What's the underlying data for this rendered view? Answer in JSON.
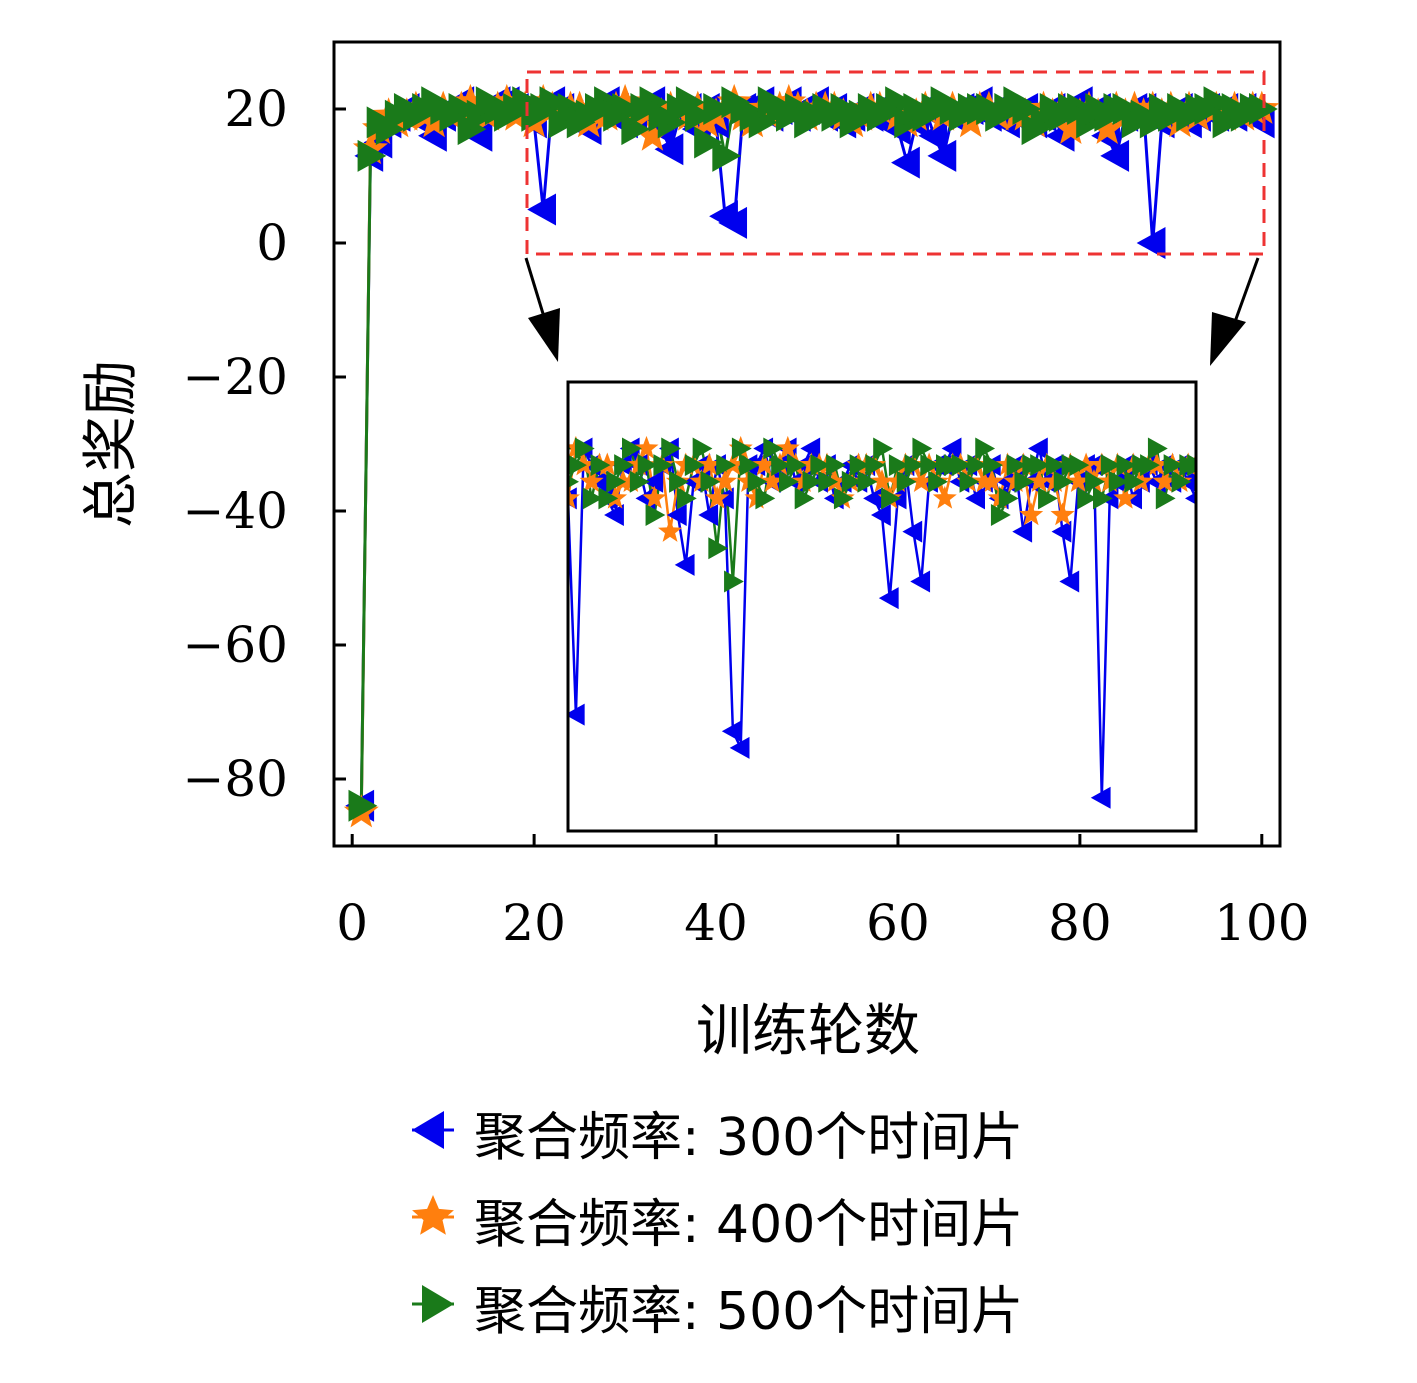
{
  "chart_data": {
    "type": "line",
    "xlabel": "训练轮数",
    "ylabel": "总奖励",
    "xlim": [
      -2,
      102
    ],
    "ylim": [
      -90,
      30
    ],
    "x_ticks": [
      0,
      20,
      40,
      60,
      80,
      100
    ],
    "x_tick_labels": [
      "0",
      "20",
      "40",
      "60",
      "80",
      "100"
    ],
    "y_ticks": [
      20,
      0,
      -20,
      -40,
      -60,
      -80
    ],
    "y_tick_labels": [
      "20",
      "0",
      "−20",
      "−40",
      "−60",
      "−80"
    ],
    "grid": false,
    "legend_position": "bottom",
    "x": [
      1,
      2,
      3,
      4,
      5,
      6,
      7,
      8,
      9,
      10,
      11,
      12,
      13,
      14,
      15,
      16,
      17,
      18,
      19,
      20,
      21,
      22,
      23,
      24,
      25,
      26,
      27,
      28,
      29,
      30,
      31,
      32,
      33,
      34,
      35,
      36,
      37,
      38,
      39,
      40,
      41,
      42,
      43,
      44,
      45,
      46,
      47,
      48,
      49,
      50,
      51,
      52,
      53,
      54,
      55,
      56,
      57,
      58,
      59,
      60,
      61,
      62,
      63,
      64,
      65,
      66,
      67,
      68,
      69,
      70,
      71,
      72,
      73,
      74,
      75,
      76,
      77,
      78,
      79,
      80,
      81,
      82,
      83,
      84,
      85,
      86,
      87,
      88,
      89,
      90,
      91,
      92,
      93,
      94,
      95,
      96,
      97,
      98,
      99,
      100
    ],
    "series": [
      {
        "name": "聚合频率: 300个时间片",
        "color": "#0000ee",
        "marker": "triangle-left",
        "values": [
          -84,
          13,
          15,
          18,
          19,
          20,
          19,
          18,
          16,
          19,
          20,
          21,
          18,
          16,
          20,
          21,
          21,
          20,
          19,
          18,
          5,
          21,
          20,
          19,
          18,
          17,
          20,
          21,
          20,
          18,
          19,
          20,
          21,
          17,
          14,
          19,
          20,
          17,
          20,
          18,
          4,
          3,
          20,
          20,
          21,
          19,
          20,
          21,
          19,
          20,
          21,
          19,
          20,
          18,
          19,
          20,
          19,
          20,
          18,
          17,
          12,
          18,
          20,
          16,
          13,
          19,
          20,
          20,
          21,
          19,
          20,
          18,
          19,
          20,
          18,
          19,
          20,
          16,
          19,
          21,
          19,
          20,
          16,
          13,
          19,
          20,
          20,
          0,
          18,
          19,
          20,
          18,
          19,
          20,
          19,
          20,
          19,
          20,
          19,
          18
        ]
      },
      {
        "name": "聚合频率: 400个时间片",
        "color": "#ff7f0e",
        "marker": "star",
        "values": [
          -85,
          14,
          17,
          19,
          18,
          19,
          20,
          19,
          18,
          20,
          19,
          20,
          21,
          20,
          19,
          20,
          21,
          19,
          20,
          18,
          21,
          20,
          19,
          20,
          20,
          18,
          19,
          19,
          20,
          21,
          18,
          20,
          16,
          19,
          20,
          20,
          19,
          20,
          18,
          19,
          20,
          21,
          19,
          18,
          20,
          19,
          20,
          21,
          20,
          19,
          20,
          20,
          20,
          19,
          18,
          19,
          20,
          20,
          20,
          19,
          18,
          19,
          20,
          20,
          19,
          20,
          19,
          18,
          20,
          20,
          19,
          20,
          19,
          19,
          18,
          20,
          19,
          20,
          17,
          19,
          20,
          19,
          17,
          20,
          19,
          20,
          19,
          20,
          19,
          20,
          18,
          20,
          19,
          20,
          20,
          19,
          20,
          19,
          20,
          20
        ]
      },
      {
        "name": "聚合频率: 500个时间片",
        "color": "#1a7a1a",
        "marker": "triangle-right",
        "values": [
          -84,
          13,
          18,
          17,
          19,
          20,
          19,
          20,
          21,
          20,
          19,
          20,
          17,
          19,
          21,
          20,
          19,
          20,
          21,
          19,
          20,
          21,
          18,
          20,
          18,
          19,
          20,
          21,
          19,
          20,
          17,
          20,
          21,
          19,
          18,
          20,
          21,
          19,
          15,
          20,
          13,
          21,
          20,
          19,
          18,
          21,
          20,
          19,
          20,
          18,
          19,
          20,
          19,
          20,
          18,
          19,
          20,
          19,
          20,
          21,
          18,
          20,
          19,
          20,
          21,
          20,
          19,
          20,
          20,
          20,
          19,
          20,
          21,
          20,
          17,
          18,
          20,
          19,
          20,
          20,
          18,
          20,
          19,
          20,
          20,
          18,
          19,
          18,
          20,
          19,
          20,
          19,
          20,
          20,
          21,
          18,
          20,
          19,
          20,
          20
        ]
      }
    ],
    "inset": {
      "x_range": [
        20,
        100
      ],
      "y_range": [
        -2,
        25
      ]
    }
  }
}
